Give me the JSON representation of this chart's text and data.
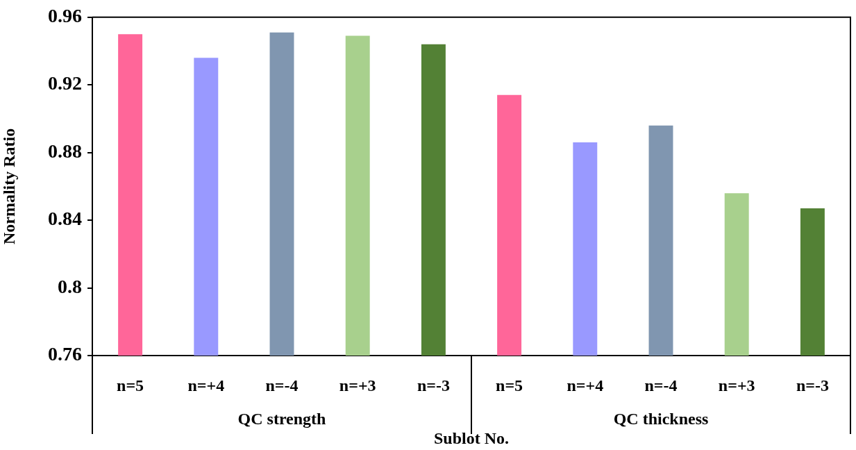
{
  "chart_data": {
    "type": "bar",
    "xlabel": "Sublot No.",
    "ylabel": "Normality Ratio",
    "categories": [
      "n=5",
      "n=+4",
      "n=-4",
      "n=+3",
      "n=-3",
      "n=5",
      "n=+4",
      "n=-4",
      "n=+3",
      "n=-3"
    ],
    "values": [
      0.95,
      0.936,
      0.951,
      0.949,
      0.944,
      0.914,
      0.886,
      0.896,
      0.856,
      0.847
    ],
    "colors": [
      "#ff6699",
      "#9999ff",
      "#8096b0",
      "#a8d08d",
      "#538135",
      "#ff6699",
      "#9999ff",
      "#8096b0",
      "#a8d08d",
      "#538135"
    ],
    "ylim": [
      0.76,
      0.96
    ],
    "yticks": [
      0.76,
      0.8,
      0.84,
      0.88,
      0.92,
      0.96
    ],
    "annotations": [
      "QC strength",
      "QC thickness"
    ],
    "grid": false,
    "legend": false
  }
}
